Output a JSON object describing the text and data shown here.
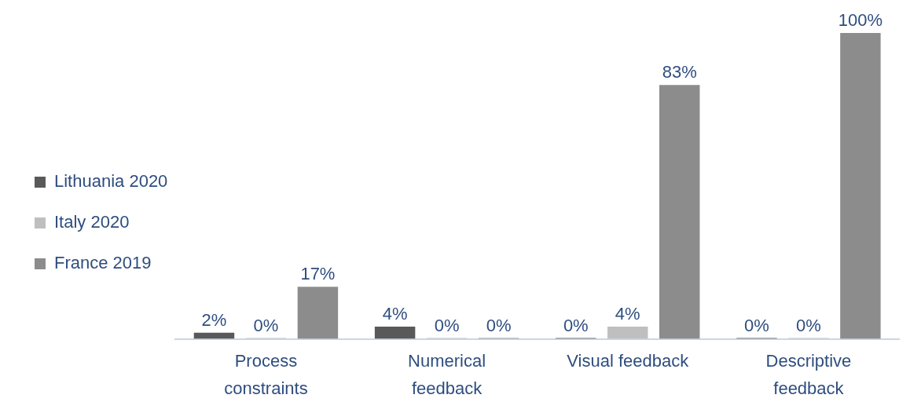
{
  "chart_data": {
    "type": "bar",
    "categories": [
      "Process constraints",
      "Numerical feedback",
      "Visual feedback",
      "Descriptive feedback"
    ],
    "series": [
      {
        "name": "Lithuania 2020",
        "color": "#595959",
        "values": [
          2,
          4,
          0,
          0
        ],
        "value_labels": [
          "2%",
          "4%",
          "0%",
          "0%"
        ]
      },
      {
        "name": "Italy 2020",
        "color": "#bfbfbf",
        "values": [
          0,
          0,
          4,
          0
        ],
        "value_labels": [
          "0%",
          "0%",
          "4%",
          "0%"
        ]
      },
      {
        "name": "France 2019",
        "color": "#8c8c8c",
        "values": [
          17,
          0,
          83,
          100
        ],
        "value_labels": [
          "17%",
          "0%",
          "83%",
          "100%"
        ]
      }
    ],
    "legend": "left",
    "grid": false
  }
}
